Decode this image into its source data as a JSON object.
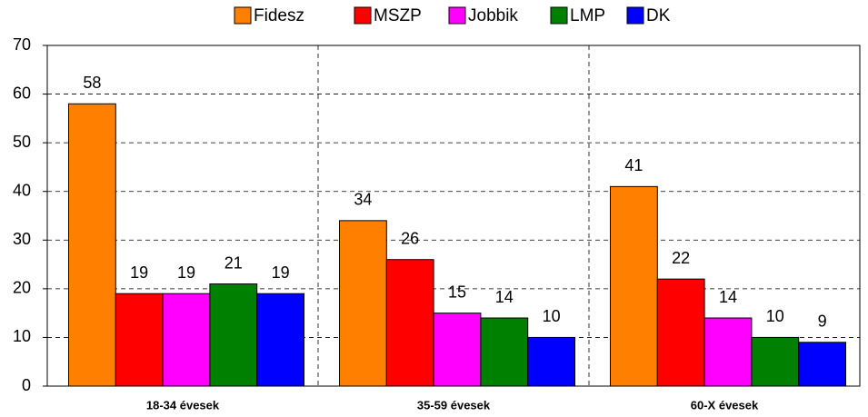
{
  "chart_data": {
    "type": "bar",
    "categories": [
      "18-34 évesek",
      "35-59 évesek",
      "60-X évesek"
    ],
    "series": [
      {
        "name": "Fidesz",
        "color": "#ff8000",
        "values": [
          58,
          34,
          41
        ]
      },
      {
        "name": "MSZP",
        "color": "#ff0000",
        "values": [
          19,
          26,
          22
        ]
      },
      {
        "name": "Jobbik",
        "color": "#ff00ff",
        "values": [
          19,
          15,
          14
        ]
      },
      {
        "name": "LMP",
        "color": "#008000",
        "values": [
          21,
          14,
          10
        ]
      },
      {
        "name": "DK",
        "color": "#0000ff",
        "values": [
          19,
          10,
          9
        ]
      }
    ],
    "ylim": [
      0,
      70
    ],
    "yticks": [
      0,
      10,
      20,
      30,
      40,
      50,
      60,
      70
    ],
    "grid": true,
    "legend": "top"
  }
}
